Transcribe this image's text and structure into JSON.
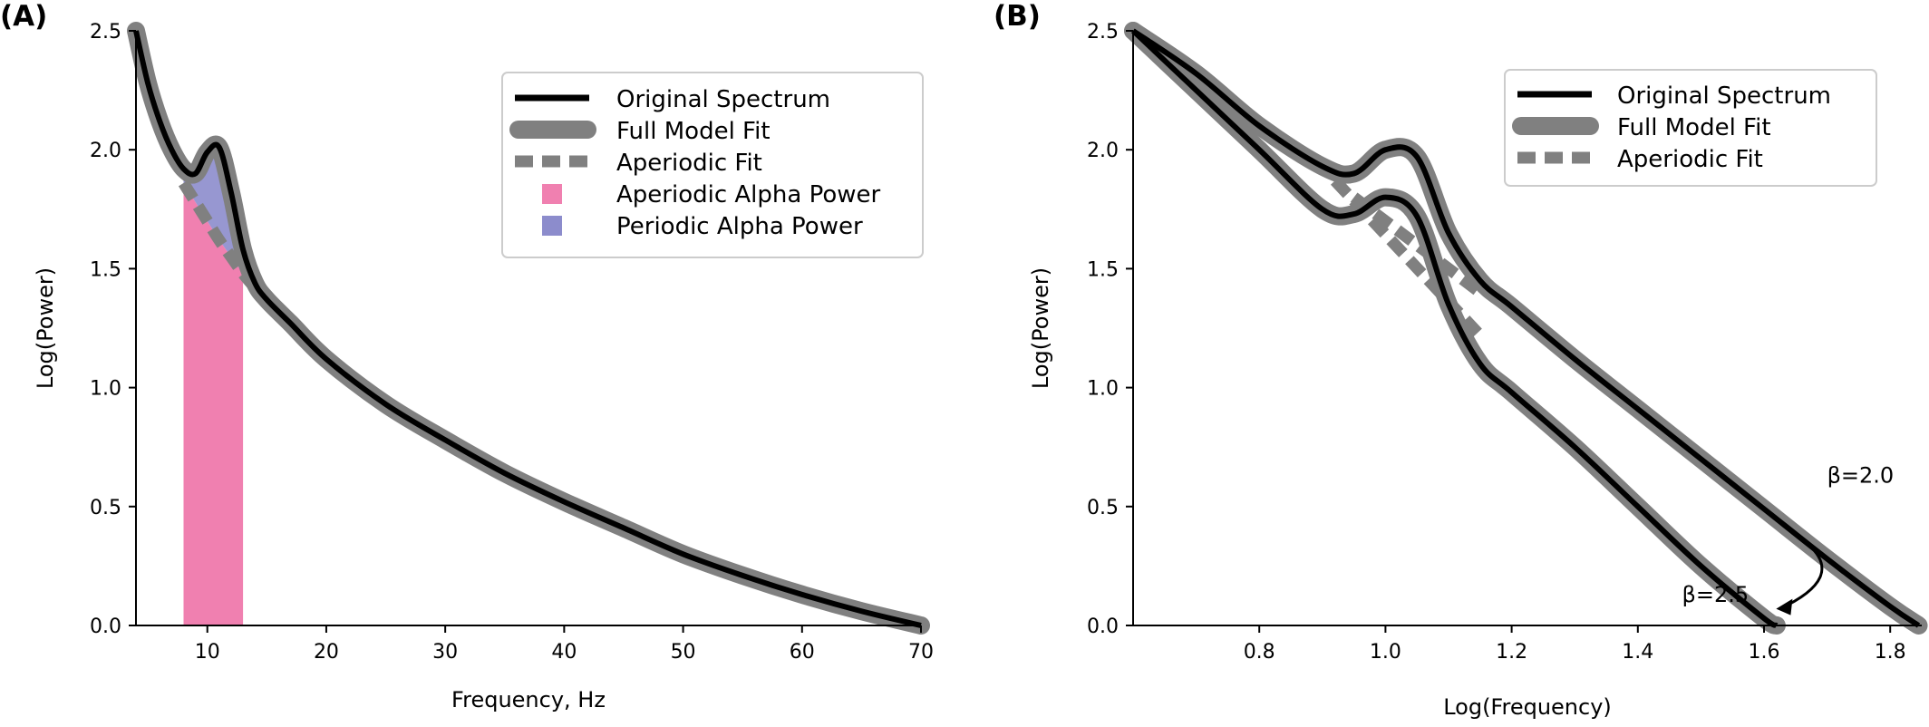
{
  "chart_data": [
    {
      "type": "line",
      "panel_label": "(A)",
      "xlabel": "Frequency, Hz",
      "ylabel": "Log(Power)",
      "xlim": [
        4,
        70
      ],
      "ylim": [
        0,
        2.5
      ],
      "x_ticks": [
        10,
        20,
        30,
        40,
        50,
        60,
        70
      ],
      "y_ticks": [
        0.0,
        0.5,
        1.0,
        1.5,
        2.0,
        2.5
      ],
      "x_tick_labels": [
        "10",
        "20",
        "30",
        "40",
        "50",
        "60",
        "70"
      ],
      "y_tick_labels": [
        "0.0",
        "0.5",
        "1.0",
        "1.5",
        "2.0",
        "2.5"
      ],
      "grid": false,
      "legend_position": "top-right",
      "series": [
        {
          "name": "Original Spectrum",
          "style": "solid-thin",
          "color": "#000000",
          "x": [
            4,
            5,
            6,
            7,
            8,
            9,
            10,
            11,
            12,
            13,
            14,
            15,
            17,
            20,
            25,
            30,
            35,
            40,
            45,
            50,
            55,
            60,
            65,
            70
          ],
          "y": [
            2.5,
            2.28,
            2.12,
            2.0,
            1.92,
            1.9,
            1.99,
            2.01,
            1.82,
            1.58,
            1.44,
            1.37,
            1.27,
            1.12,
            0.93,
            0.78,
            0.64,
            0.52,
            0.41,
            0.3,
            0.21,
            0.13,
            0.06,
            0.0
          ]
        },
        {
          "name": "Full Model Fit",
          "style": "solid-thick",
          "color": "#808080",
          "x": [
            4,
            5,
            6,
            7,
            8,
            9,
            10,
            11,
            12,
            13,
            14,
            15,
            17,
            20,
            25,
            30,
            35,
            40,
            45,
            50,
            55,
            60,
            65,
            70
          ],
          "y": [
            2.5,
            2.28,
            2.12,
            2.0,
            1.92,
            1.9,
            1.99,
            2.01,
            1.82,
            1.58,
            1.44,
            1.37,
            1.27,
            1.12,
            0.93,
            0.78,
            0.64,
            0.52,
            0.41,
            0.3,
            0.21,
            0.13,
            0.06,
            0.0
          ]
        },
        {
          "name": "Aperiodic Fit",
          "style": "dashed-thick",
          "color": "#808080",
          "x": [
            8,
            9,
            10,
            11,
            12,
            13,
            14
          ],
          "y": [
            1.86,
            1.78,
            1.7,
            1.62,
            1.55,
            1.48,
            1.42
          ]
        },
        {
          "name": "Aperiodic Alpha Power",
          "style": "fill",
          "color": "#f080b0",
          "x_range": [
            8,
            13
          ]
        },
        {
          "name": "Periodic Alpha Power",
          "style": "fill",
          "color": "#8c8ccc",
          "x_range": [
            8,
            13
          ]
        }
      ]
    },
    {
      "type": "line",
      "panel_label": "(B)",
      "xlabel": "Log(Frequency)",
      "ylabel": "Log(Power)",
      "xlim": [
        0.6,
        1.85
      ],
      "ylim": [
        0,
        2.5
      ],
      "x_ticks": [
        0.8,
        1.0,
        1.2,
        1.4,
        1.6,
        1.8
      ],
      "y_ticks": [
        0.0,
        0.5,
        1.0,
        1.5,
        2.0,
        2.5
      ],
      "x_tick_labels": [
        "0.8",
        "1.0",
        "1.2",
        "1.4",
        "1.6",
        "1.8"
      ],
      "y_tick_labels": [
        "0.0",
        "0.5",
        "1.0",
        "1.5",
        "2.0",
        "2.5"
      ],
      "grid": false,
      "legend_position": "top-right",
      "legend": [
        "Original Spectrum",
        "Full Model Fit",
        "Aperiodic Fit"
      ],
      "series": [
        {
          "name": "Original Spectrum",
          "group": "β=2.0",
          "style": "solid-thin",
          "color": "#000000",
          "x": [
            0.6,
            0.7,
            0.8,
            0.9,
            0.95,
            1.0,
            1.05,
            1.1,
            1.15,
            1.2,
            1.3,
            1.4,
            1.5,
            1.6,
            1.7,
            1.8,
            1.845
          ],
          "y": [
            2.5,
            2.32,
            2.1,
            1.93,
            1.9,
            2.0,
            1.97,
            1.65,
            1.45,
            1.34,
            1.12,
            0.91,
            0.7,
            0.49,
            0.28,
            0.08,
            0.0
          ]
        },
        {
          "name": "Full Model Fit",
          "group": "β=2.0",
          "style": "solid-thick",
          "color": "#808080",
          "x": [
            0.6,
            0.7,
            0.8,
            0.9,
            0.95,
            1.0,
            1.05,
            1.1,
            1.15,
            1.2,
            1.3,
            1.4,
            1.5,
            1.6,
            1.7,
            1.8,
            1.845
          ],
          "y": [
            2.5,
            2.32,
            2.1,
            1.93,
            1.9,
            2.0,
            1.97,
            1.65,
            1.45,
            1.34,
            1.12,
            0.91,
            0.7,
            0.49,
            0.28,
            0.08,
            0.0
          ]
        },
        {
          "name": "Aperiodic Fit",
          "group": "β=2.0",
          "style": "dashed-thick",
          "color": "#808080",
          "x": [
            0.95,
            1.15
          ],
          "y": [
            1.8,
            1.4
          ]
        },
        {
          "name": "Original Spectrum",
          "group": "β=2.5",
          "style": "solid-thin",
          "color": "#000000",
          "x": [
            0.6,
            0.7,
            0.8,
            0.9,
            0.95,
            1.0,
            1.05,
            1.1,
            1.15,
            1.2,
            1.3,
            1.4,
            1.5,
            1.6,
            1.62
          ],
          "y": [
            2.5,
            2.25,
            2.0,
            1.75,
            1.73,
            1.8,
            1.72,
            1.35,
            1.1,
            0.98,
            0.75,
            0.5,
            0.25,
            0.03,
            0.0
          ]
        },
        {
          "name": "Full Model Fit",
          "group": "β=2.5",
          "style": "solid-thick",
          "color": "#808080",
          "x": [
            0.6,
            0.7,
            0.8,
            0.9,
            0.95,
            1.0,
            1.05,
            1.1,
            1.15,
            1.2,
            1.3,
            1.4,
            1.5,
            1.6,
            1.62
          ],
          "y": [
            2.5,
            2.25,
            2.0,
            1.75,
            1.73,
            1.8,
            1.72,
            1.35,
            1.1,
            0.98,
            0.75,
            0.5,
            0.25,
            0.03,
            0.0
          ]
        },
        {
          "name": "Aperiodic Fit",
          "group": "β=2.5",
          "style": "dashed-thick",
          "color": "#808080",
          "x": [
            0.92,
            1.15
          ],
          "y": [
            1.87,
            1.22
          ]
        }
      ],
      "annotations": [
        {
          "text": "β=2.0",
          "x": 1.7,
          "y": 0.6
        },
        {
          "text": "β=2.5",
          "x": 1.47,
          "y": 0.1
        }
      ]
    }
  ]
}
